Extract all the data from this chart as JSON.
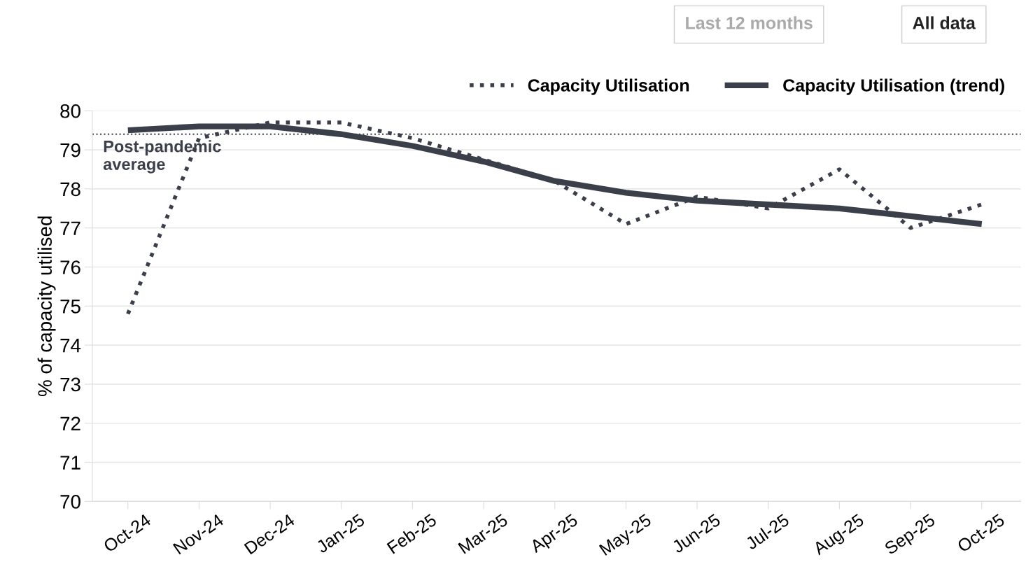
{
  "chart_data": {
    "type": "line",
    "ylabel": "% of capacity utilised",
    "categories": [
      "Oct-24",
      "Nov-24",
      "Dec-24",
      "Jan-25",
      "Feb-25",
      "Mar-25",
      "Apr-25",
      "May-25",
      "Jun-25",
      "Jul-25",
      "Aug-25",
      "Sep-25",
      "Oct-25"
    ],
    "series": [
      {
        "name": "Capacity Utilisation",
        "color": "#3b3f4a",
        "line_style": "dotted",
        "values": [
          74.8,
          79.3,
          79.7,
          79.7,
          79.3,
          78.75,
          78.2,
          77.1,
          77.8,
          77.5,
          78.5,
          77.0,
          77.6
        ]
      },
      {
        "name": "Capacity Utilisation (trend)",
        "color": "#3b3f4a",
        "line_style": "solid",
        "values": [
          79.5,
          79.6,
          79.6,
          79.4,
          79.1,
          78.7,
          78.2,
          77.9,
          77.7,
          77.6,
          77.5,
          77.3,
          77.1
        ]
      }
    ],
    "ylim": [
      70,
      80
    ],
    "yticks": [
      70,
      71,
      72,
      73,
      74,
      75,
      76,
      77,
      78,
      79,
      80
    ],
    "ref_lines": [
      {
        "axis": "y",
        "value": 79.4,
        "label": "Post-pandemic\naverage",
        "color": "#3b3f4a",
        "line_style": "dotted"
      }
    ],
    "annotations": [
      "Last 12 months",
      "All data"
    ],
    "grid": "y",
    "legend": "top right",
    "marker": "none"
  }
}
